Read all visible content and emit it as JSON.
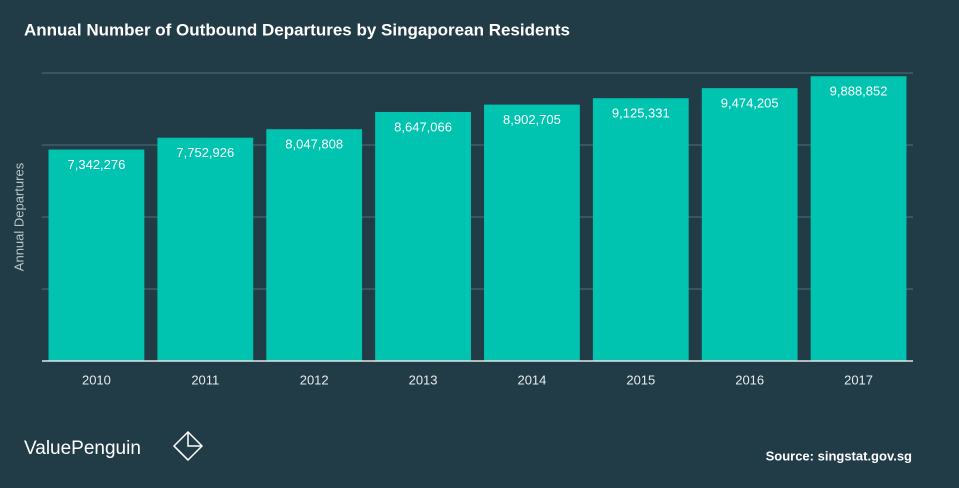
{
  "chart_data": {
    "type": "bar",
    "title": "Annual Number of Outbound Departures by Singaporean Residents",
    "y_label": "Annual Departures",
    "categories": [
      "2010",
      "2011",
      "2012",
      "2013",
      "2014",
      "2015",
      "2016",
      "2017"
    ],
    "values": [
      7342276,
      7752926,
      8047808,
      8647066,
      8902705,
      9125331,
      9474205,
      9888852
    ],
    "value_labels": [
      "7,342,276",
      "7,752,926",
      "8,047,808",
      "8,647,066",
      "8,902,705",
      "9,125,331",
      "9,474,205",
      "9,888,852"
    ],
    "color": "#00c4b0",
    "ylim": [
      0,
      10000000
    ],
    "yticks": [
      0,
      2500000,
      5000000,
      7500000,
      10000000
    ],
    "grid": true,
    "brand": "ValuePenguin",
    "source": "Source: singstat.gov.sg"
  }
}
